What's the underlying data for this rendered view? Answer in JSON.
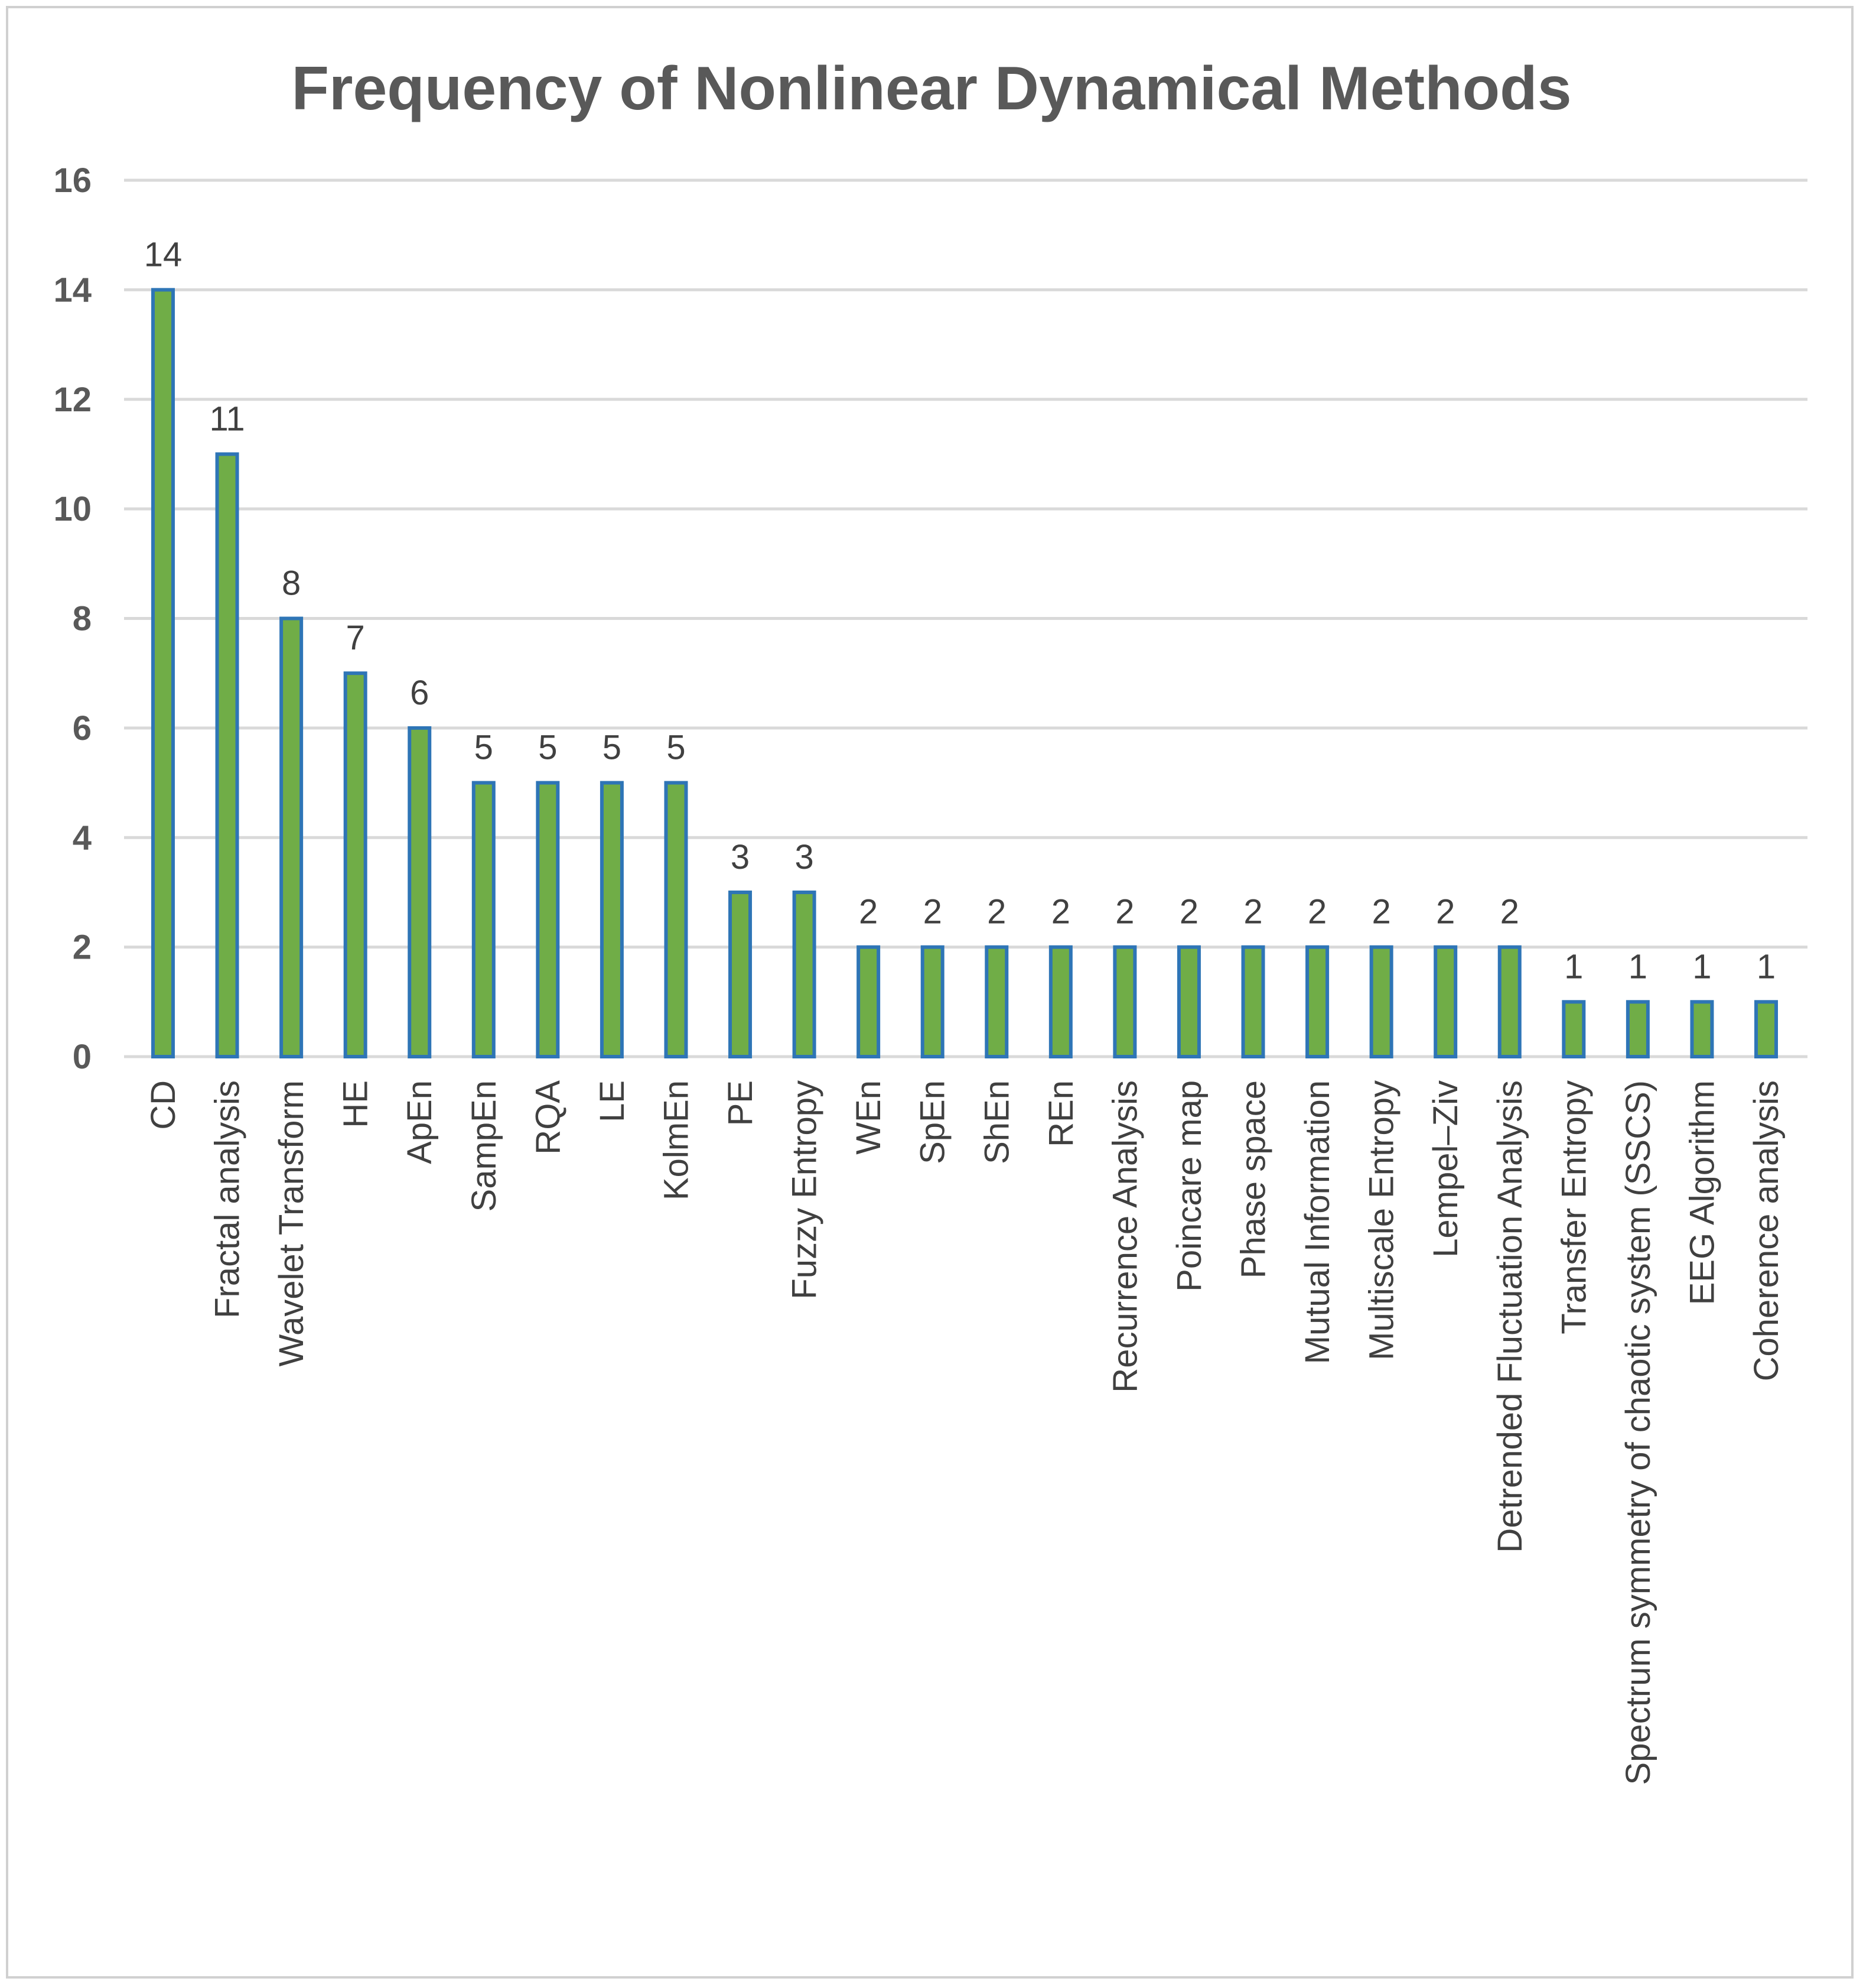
{
  "chart_data": {
    "type": "bar",
    "title": "Frequency of Nonlinear Dynamical Methods",
    "xlabel": "",
    "ylabel": "",
    "ylim": [
      0,
      16
    ],
    "yticks": [
      0,
      2,
      4,
      6,
      8,
      10,
      12,
      14,
      16
    ],
    "ytick_labels": [
      "0",
      "2",
      "4",
      "6",
      "8",
      "10",
      "12",
      "14",
      "16"
    ],
    "grid": true,
    "legend": "none",
    "categories": [
      "CD",
      "Fractal analysis",
      "Wavelet Transform",
      "HE",
      "ApEn",
      "SampEn",
      "RQA",
      "LE",
      "KolmEn",
      "PE",
      "Fuzzy Entropy",
      "WEn",
      "SpEn",
      "ShEn",
      "REn",
      "Recurrence Analysis",
      "Poincare map",
      "Phase space",
      "Mutual Information",
      "Multiscale Entropy",
      "Lempel–Ziv",
      "Detrended Fluctuation Analysis",
      "Transfer Entropy",
      "Spectrum symmetry of chaotic system (SSCS)",
      "EEG Algorithm",
      "Coherence analysis"
    ],
    "values": [
      14,
      11,
      8,
      7,
      6,
      5,
      5,
      5,
      5,
      3,
      3,
      2,
      2,
      2,
      2,
      2,
      2,
      2,
      2,
      2,
      2,
      2,
      1,
      1,
      1,
      1
    ],
    "data_labels": [
      "14",
      "11",
      "8",
      "7",
      "6",
      "5",
      "5",
      "5",
      "5",
      "3",
      "3",
      "2",
      "2",
      "2",
      "2",
      "2",
      "2",
      "2",
      "2",
      "2",
      "2",
      "2",
      "1",
      "1",
      "1",
      "1"
    ],
    "colors": {
      "bar_fill": "#70ad47",
      "bar_stroke": "#2e75b6",
      "gridline": "#d9d9d9",
      "title": "#595959",
      "tick_label": "#595959",
      "category_label": "#404040",
      "data_label": "#404040",
      "frame_border": "#d0d0d0"
    }
  }
}
